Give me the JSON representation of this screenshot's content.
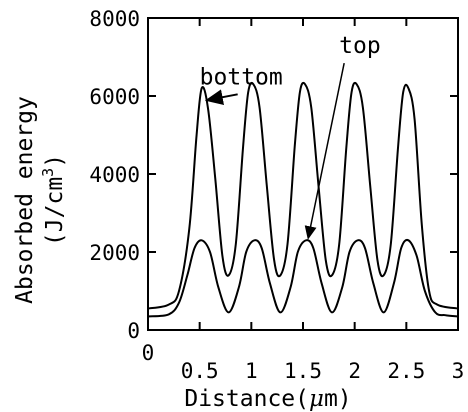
{
  "chart_data": {
    "type": "line",
    "xlabel_prefix": "Distance(",
    "xlabel_unit_symbol": "μ",
    "xlabel_suffix": "m)",
    "ylabel_line1": "Absorbed energy",
    "ylabel_line2_prefix": "(J/cm",
    "ylabel_line2_sup": "3",
    "ylabel_line2_suffix": ")",
    "xlim": [
      0,
      3
    ],
    "ylim": [
      0,
      8000
    ],
    "x_ticks": [
      "0",
      "0.5",
      "1",
      "1.5",
      "2",
      "2.5",
      "3"
    ],
    "y_ticks": [
      "0",
      "2000",
      "4000",
      "6000",
      "8000"
    ],
    "grid": false,
    "series": [
      {
        "name": "bottom",
        "x": [
          0,
          0.2,
          0.3,
          0.4,
          0.47,
          0.52,
          0.58,
          0.65,
          0.72,
          0.78,
          0.85,
          0.92,
          0.97,
          1.02,
          1.08,
          1.15,
          1.22,
          1.28,
          1.35,
          1.42,
          1.47,
          1.52,
          1.58,
          1.65,
          1.72,
          1.78,
          1.85,
          1.92,
          1.97,
          2.02,
          2.08,
          2.15,
          2.22,
          2.28,
          2.35,
          2.42,
          2.47,
          2.52,
          2.58,
          2.65,
          2.72,
          2.8,
          3
        ],
        "values": [
          550,
          650,
          1000,
          2600,
          5000,
          6200,
          5700,
          3900,
          1900,
          1400,
          2200,
          4700,
          6100,
          6300,
          5700,
          3700,
          1800,
          1400,
          2200,
          4700,
          6100,
          6300,
          5700,
          3700,
          1800,
          1400,
          2200,
          4700,
          6100,
          6300,
          5700,
          3700,
          1800,
          1400,
          2200,
          4700,
          6100,
          6200,
          5400,
          2700,
          1000,
          650,
          550
        ]
      },
      {
        "name": "top",
        "x": [
          0,
          0.2,
          0.3,
          0.38,
          0.45,
          0.52,
          0.6,
          0.68,
          0.78,
          0.88,
          0.95,
          1.03,
          1.1,
          1.18,
          1.28,
          1.38,
          1.45,
          1.53,
          1.6,
          1.68,
          1.78,
          1.88,
          1.95,
          2.03,
          2.1,
          2.18,
          2.28,
          2.38,
          2.45,
          2.52,
          2.6,
          2.68,
          2.78,
          2.88,
          3
        ],
        "values": [
          350,
          400,
          700,
          1400,
          2100,
          2300,
          2000,
          1100,
          450,
          1100,
          2000,
          2300,
          2100,
          1200,
          450,
          1100,
          2000,
          2300,
          2100,
          1200,
          450,
          1100,
          2000,
          2300,
          2100,
          1200,
          450,
          1200,
          2100,
          2300,
          1900,
          1000,
          450,
          380,
          350
        ]
      }
    ],
    "annotations": [
      {
        "text": "bottom",
        "x": 0.5,
        "y": 6300,
        "target_x": 0.55,
        "target_y": 6200
      },
      {
        "text": "top",
        "x": 1.85,
        "y": 7100,
        "target_x": 1.55,
        "target_y": 2250
      }
    ]
  }
}
